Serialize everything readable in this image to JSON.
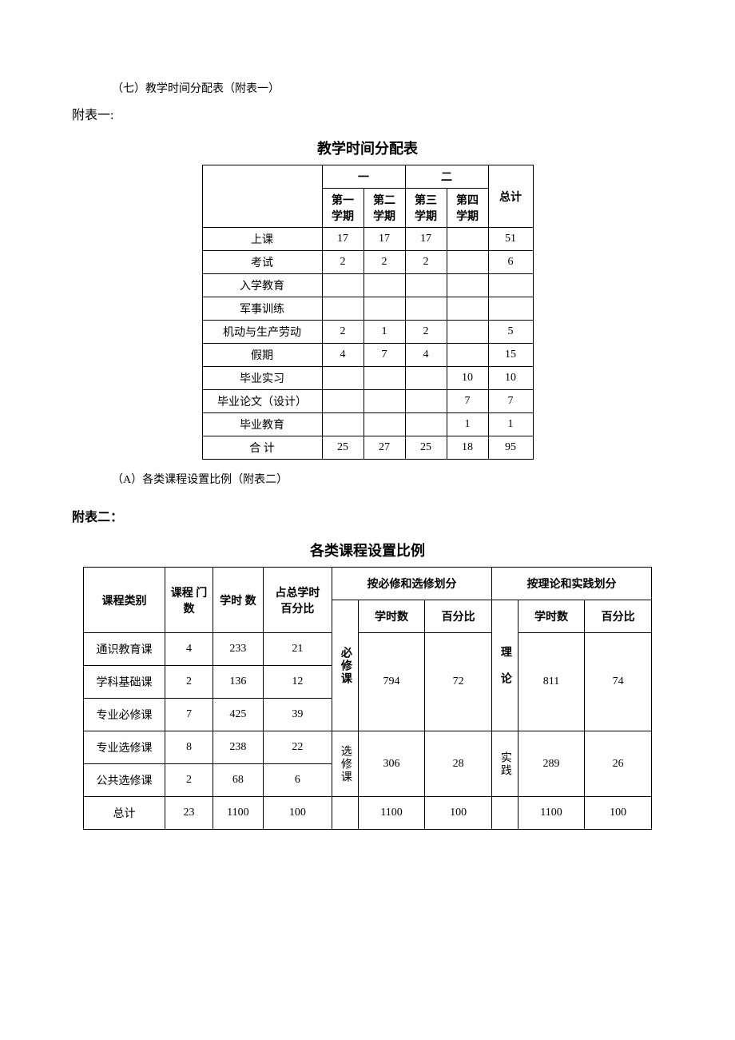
{
  "intro_line": "（七）教学时间分配表（附表一）",
  "annex1_label": "附表一:",
  "table1": {
    "title": "教学时间分配表",
    "year_group_1": "一",
    "year_group_2": "二",
    "total_label": "总计",
    "sem_headers": [
      "第一\n学期",
      "第二\n学期",
      "第三\n学期",
      "第四\n学期"
    ],
    "rows": [
      {
        "label": "上课",
        "vals": [
          "17",
          "17",
          "17",
          "",
          "51"
        ]
      },
      {
        "label": "考试",
        "vals": [
          "2",
          "2",
          "2",
          "",
          "6"
        ]
      },
      {
        "label": "入学教育",
        "vals": [
          "",
          "",
          "",
          "",
          ""
        ]
      },
      {
        "label": "军事训练",
        "vals": [
          "",
          "",
          "",
          "",
          ""
        ]
      },
      {
        "label": "机动与生产劳动",
        "vals": [
          "2",
          "1",
          "2",
          "",
          "5"
        ]
      },
      {
        "label": "假期",
        "vals": [
          "4",
          "7",
          "4",
          "",
          "15"
        ]
      },
      {
        "label": "毕业实习",
        "vals": [
          "",
          "",
          "",
          "10",
          "10"
        ]
      },
      {
        "label": "毕业论文（设计）",
        "vals": [
          "",
          "",
          "",
          "7",
          "7"
        ]
      },
      {
        "label": "毕业教育",
        "vals": [
          "",
          "",
          "",
          "1",
          "1"
        ]
      },
      {
        "label": "合 计",
        "vals": [
          "25",
          "27",
          "25",
          "18",
          "95"
        ]
      }
    ]
  },
  "subhead_a": "（A）各类课程设置比例（附表二）",
  "annex2_label": "附表二：",
  "table2": {
    "title": "各类课程设置比例",
    "head": {
      "category": "课程类别",
      "count": "课程\n门数",
      "hours": "学时\n数",
      "pct_of_total": "占总学时\n百分比",
      "by_req_elect": "按必修和选修划分",
      "by_theory_practice": "按理论和实践划分",
      "hours_sub": "学时数",
      "pct_sub": "百分比"
    },
    "vert_labels": {
      "required": "必修课",
      "elective": "选修课",
      "theory": "理 论",
      "practice": "实践"
    },
    "rows": [
      {
        "cat": "通识教育课",
        "count": "4",
        "hours": "233",
        "pct": "21"
      },
      {
        "cat": "学科基础课",
        "count": "2",
        "hours": "136",
        "pct": "12"
      },
      {
        "cat": "专业必修课",
        "count": "7",
        "hours": "425",
        "pct": "39"
      },
      {
        "cat": "专业选修课",
        "count": "8",
        "hours": "238",
        "pct": "22"
      },
      {
        "cat": "公共选修课",
        "count": "2",
        "hours": "68",
        "pct": "6"
      }
    ],
    "groups": {
      "required": {
        "hours": "794",
        "pct": "72"
      },
      "elective": {
        "hours": "306",
        "pct": "28"
      },
      "theory": {
        "hours": "811",
        "pct": "74"
      },
      "practice": {
        "hours": "289",
        "pct": "26"
      }
    },
    "totals": {
      "label": "总计",
      "count": "23",
      "hours": "1100",
      "pct": "100",
      "req_hours": "1100",
      "req_pct": "100",
      "th_hours": "1100",
      "th_pct": "100"
    }
  }
}
